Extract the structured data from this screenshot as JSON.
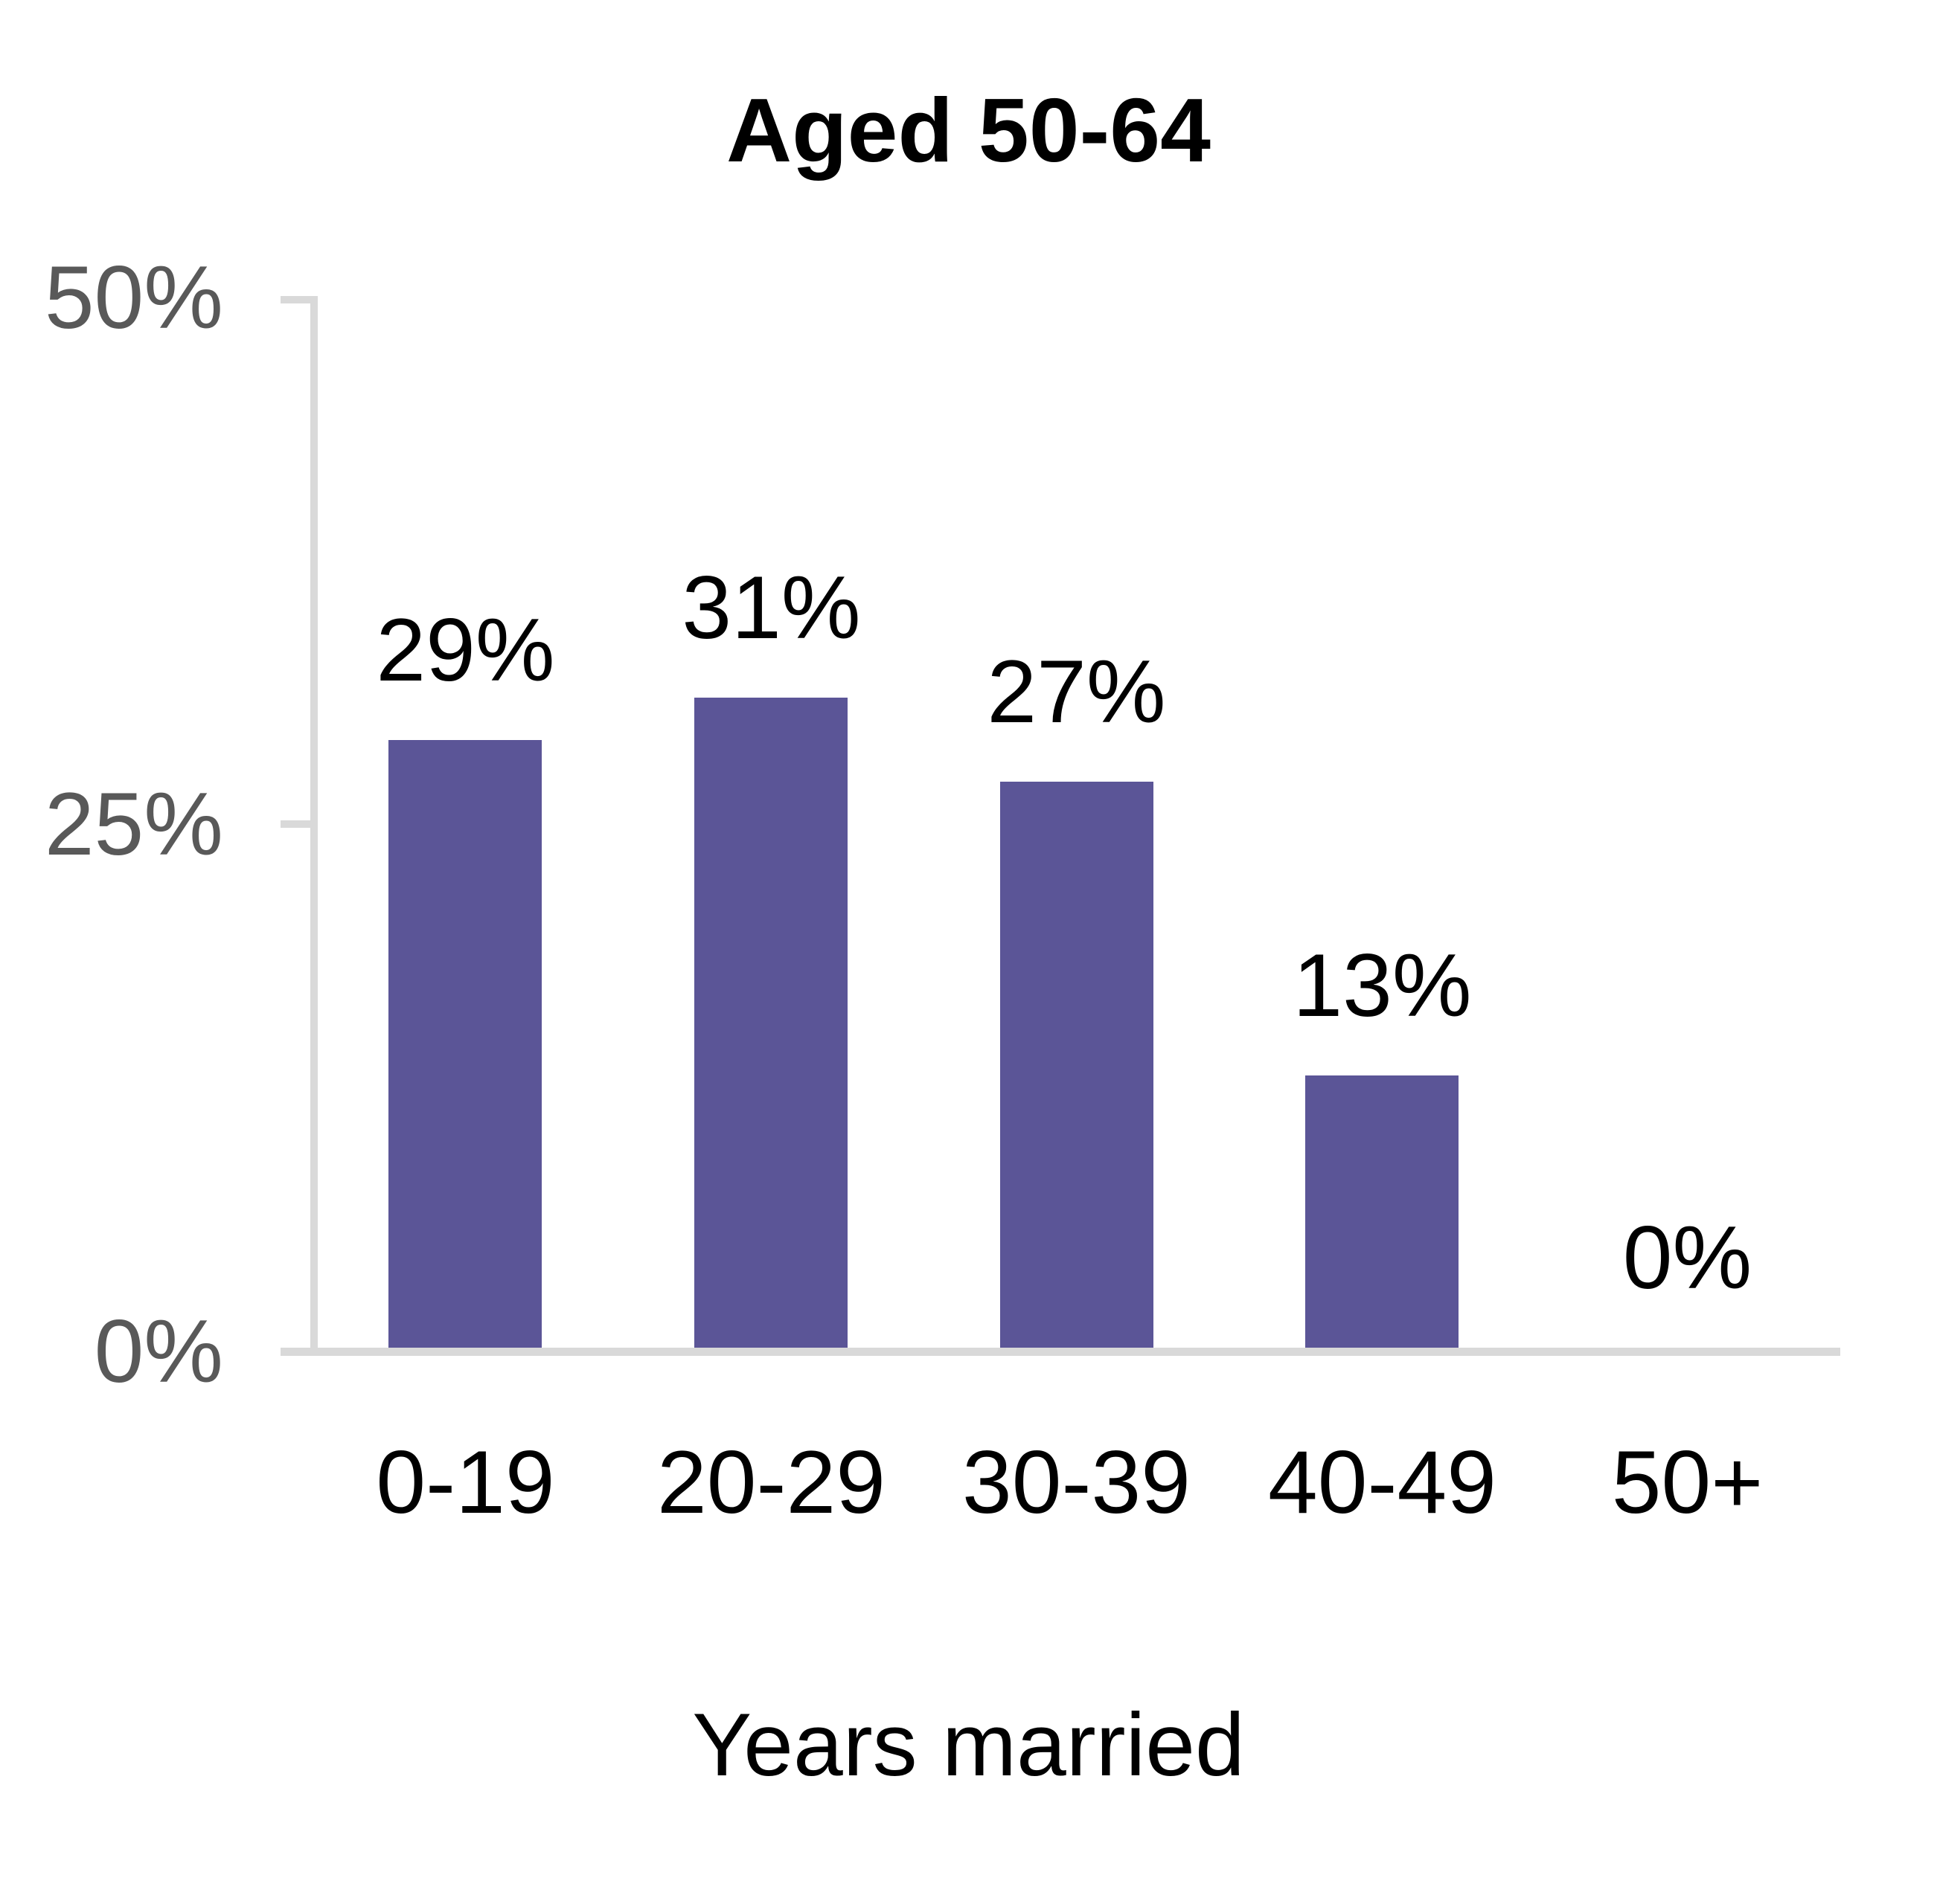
{
  "chart_data": {
    "type": "bar",
    "title": "Aged 50-64",
    "xlabel": "Years married",
    "ylabel": "",
    "categories": [
      "0-19",
      "20-29",
      "30-39",
      "40-49",
      "50+"
    ],
    "values": [
      29,
      31,
      27,
      13,
      0
    ],
    "data_labels": [
      "29%",
      "31%",
      "27%",
      "13%",
      "0%"
    ],
    "y_tick_labels": [
      "50%",
      "25%",
      "0%"
    ],
    "y_tick_values": [
      50,
      25,
      0
    ],
    "ylim": [
      0,
      50
    ],
    "grid": false,
    "legend": "none",
    "bar_color": "#5b5597",
    "axis_color": "#d9d9d9",
    "y_tick_label_color": "#595959",
    "text_color": "#000000",
    "background_color": "#ffffff"
  }
}
